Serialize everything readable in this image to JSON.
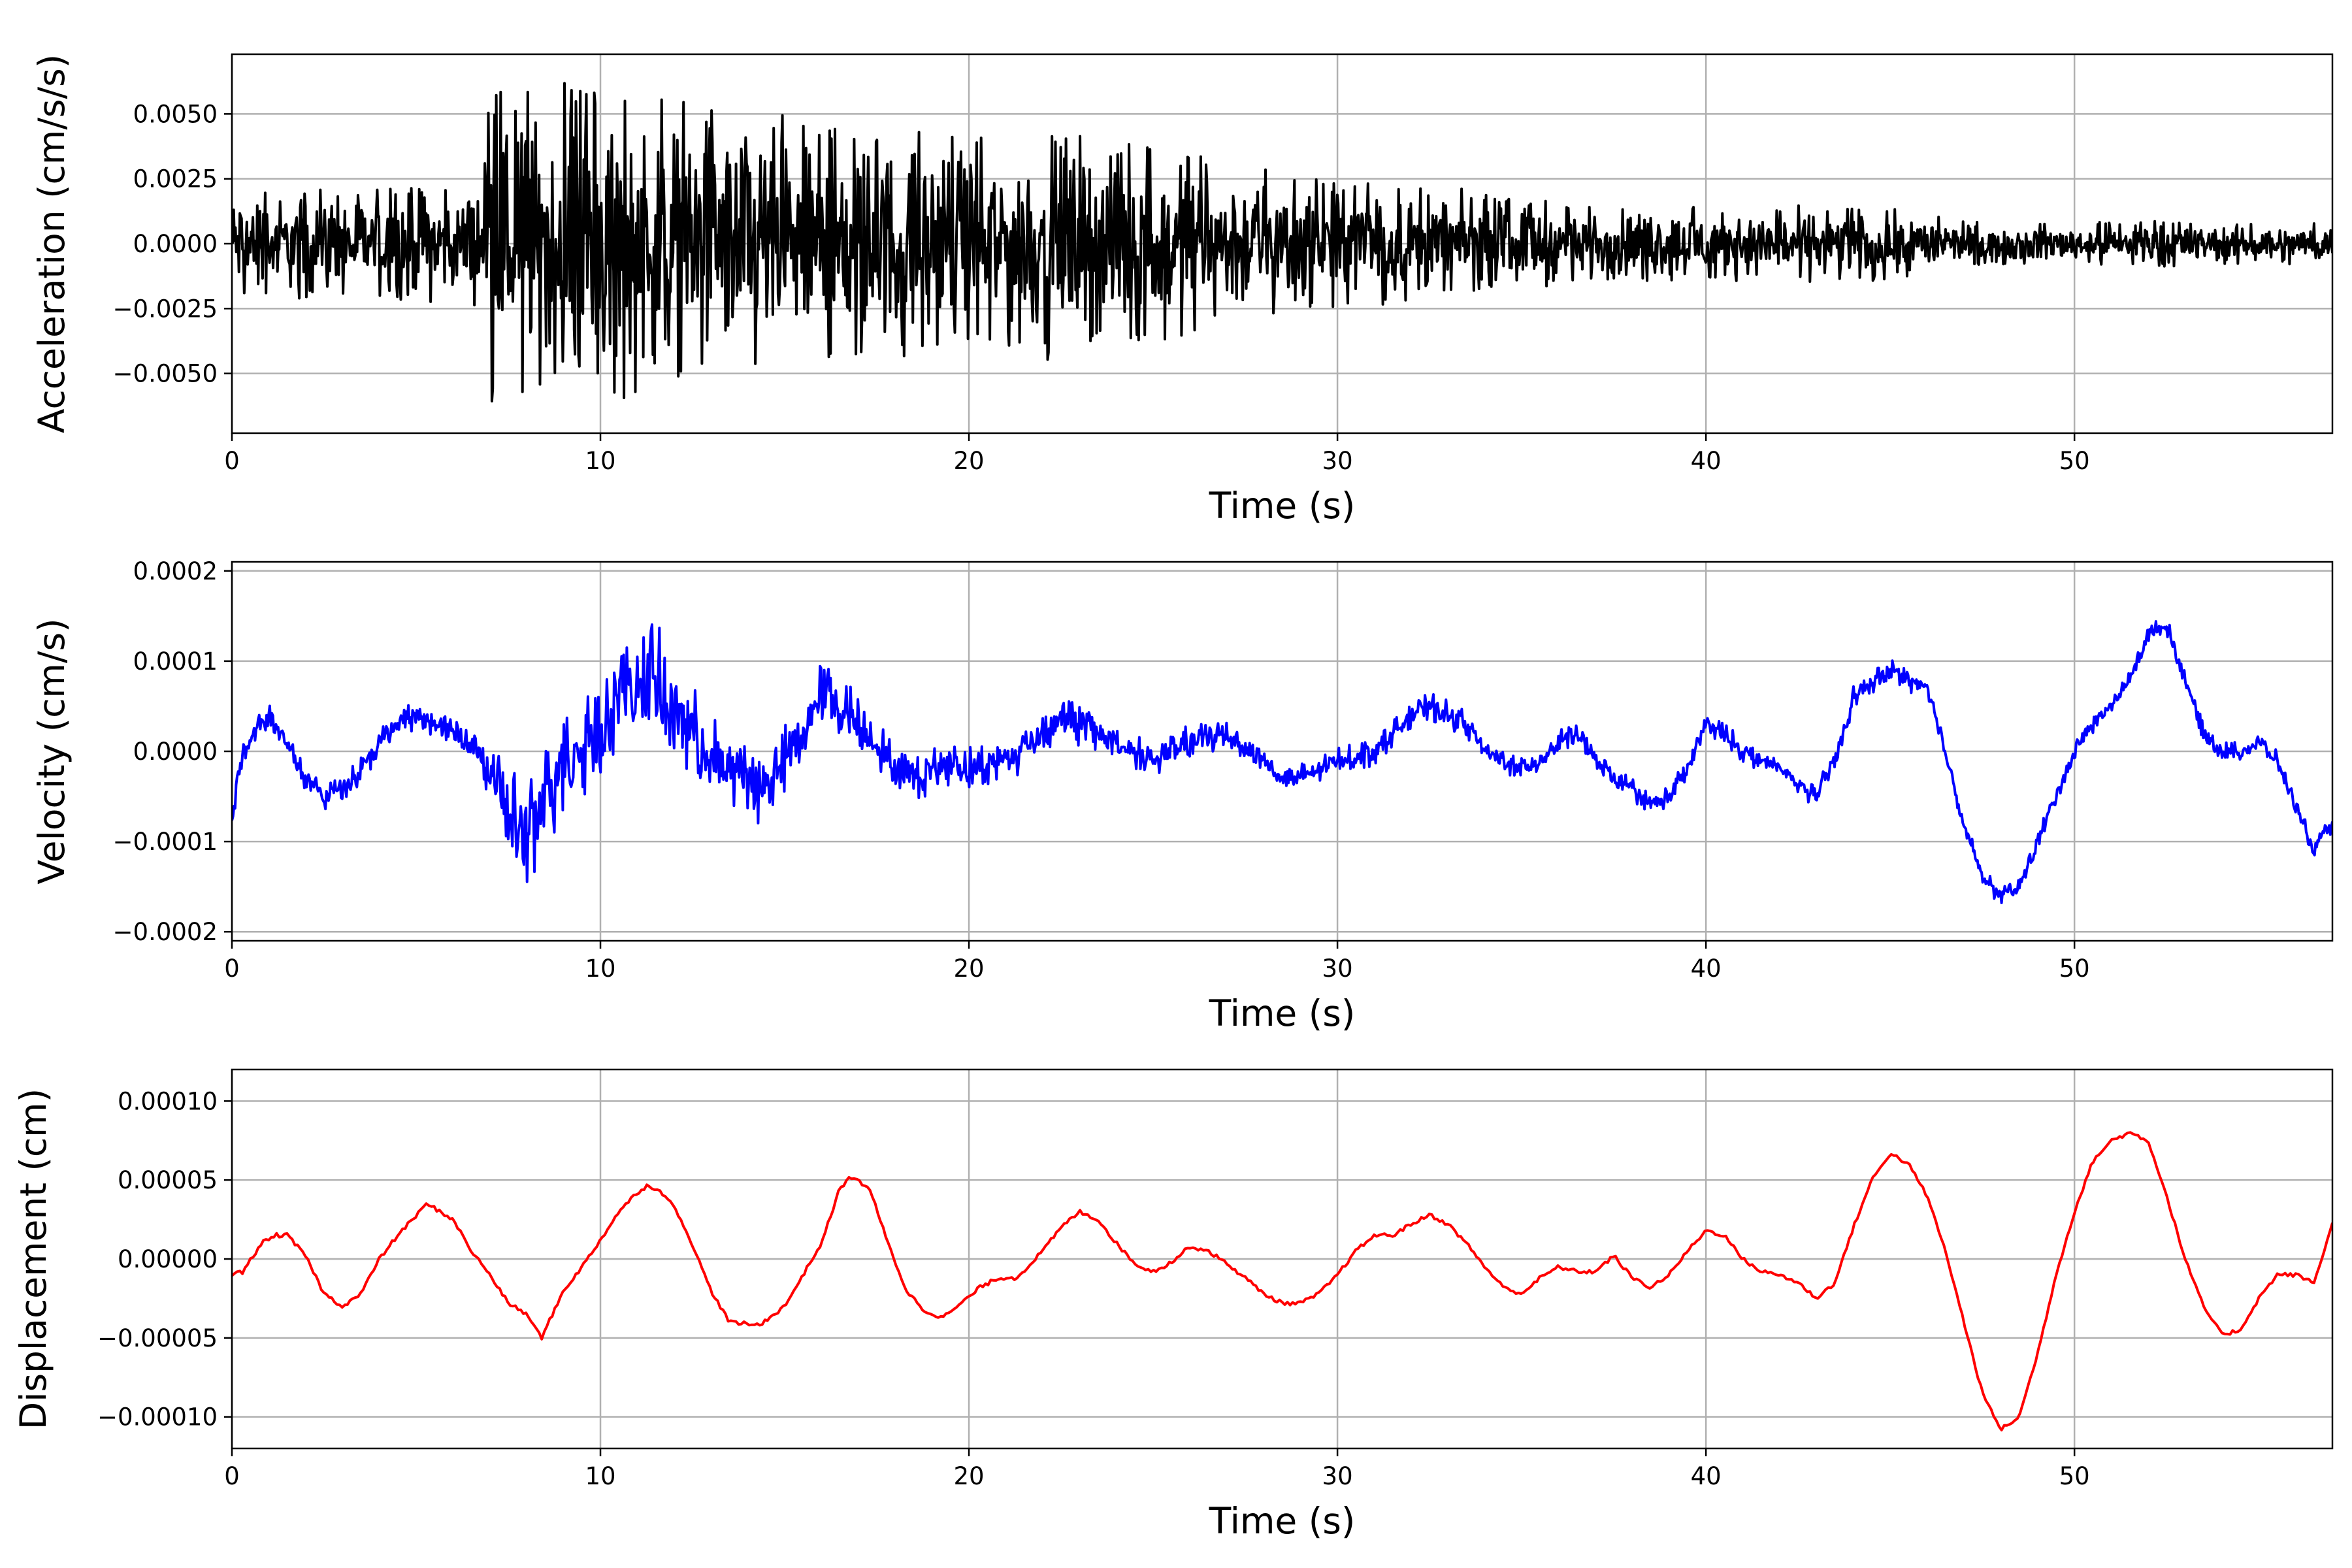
{
  "chart_data": [
    {
      "type": "line",
      "xlabel": "Time (s)",
      "ylabel": "Acceleration (cm/s/s)",
      "xlim": [
        0,
        57
      ],
      "ylim": [
        -0.0073,
        0.0073
      ],
      "xticks": [
        0,
        10,
        20,
        30,
        40,
        50
      ],
      "xtick_labels": [
        "0",
        "10",
        "20",
        "30",
        "40",
        "50"
      ],
      "yticks": [
        0.005,
        0.0025,
        0.0,
        -0.0025,
        -0.005
      ],
      "ytick_labels": [
        "0.0050",
        "0.0025",
        "0.0000",
        "−0.0025",
        "−0.0050"
      ],
      "grid": true,
      "series": [
        {
          "color": "#000000",
          "style": "noise",
          "x": [
            0,
            2,
            5,
            6.8,
            7,
            8,
            9,
            10,
            11,
            12,
            14,
            16,
            18,
            20,
            22,
            24,
            26,
            28,
            30,
            32,
            34,
            36,
            38,
            40,
            42,
            44,
            46,
            46.5,
            48,
            50,
            52,
            54,
            56,
            57
          ],
          "amplitude": [
            0.0022,
            0.0021,
            0.0022,
            0.0024,
            0.0058,
            0.006,
            0.0062,
            0.0058,
            0.0062,
            0.0055,
            0.0052,
            0.0048,
            0.0045,
            0.004,
            0.0045,
            0.004,
            0.0036,
            0.003,
            0.0026,
            0.0022,
            0.0019,
            0.0016,
            0.0015,
            0.0014,
            0.0013,
            0.0015,
            0.0013,
            0.0009,
            0.0008,
            0.0008,
            0.0009,
            0.0008,
            0.0008,
            0.0008
          ],
          "samples": 2400
        }
      ]
    },
    {
      "type": "line",
      "xlabel": "Time (s)",
      "ylabel": "Velocity (cm/s)",
      "xlim": [
        0,
        57
      ],
      "ylim": [
        -0.00021,
        0.00021
      ],
      "xticks": [
        0,
        10,
        20,
        30,
        40,
        50
      ],
      "xtick_labels": [
        "0",
        "10",
        "20",
        "30",
        "40",
        "50"
      ],
      "yticks": [
        0.0002,
        0.0001,
        0.0,
        -0.0001,
        -0.0002
      ],
      "ytick_labels": [
        "0.0002",
        "0.0001",
        "0.0000",
        "−0.0001",
        "−0.0002"
      ],
      "grid": true,
      "series": [
        {
          "color": "#0000ff",
          "x": [
            0,
            0.3,
            0.7,
            1.0,
            1.5,
            2.0,
            2.5,
            3.0,
            3.5,
            4.0,
            4.5,
            5.0,
            5.5,
            6.0,
            6.5,
            7.0,
            7.3,
            7.7,
            8.0,
            8.3,
            8.7,
            9.0,
            9.5,
            10.0,
            10.5,
            11.0,
            11.3,
            11.7,
            12.0,
            12.5,
            13.0,
            13.5,
            14.0,
            14.5,
            15.0,
            15.5,
            16.0,
            16.5,
            17.0,
            17.5,
            18.0,
            18.5,
            19.0,
            19.5,
            20.0,
            21.0,
            22.0,
            22.5,
            23.0,
            24.0,
            25.0,
            26.0,
            27.0,
            28.0,
            28.5,
            29.0,
            30.0,
            31.0,
            32.0,
            32.5,
            33.0,
            33.5,
            34.0,
            35.0,
            35.5,
            36.0,
            36.5,
            37.0,
            37.5,
            38.0,
            38.5,
            39.0,
            39.5,
            40.0,
            40.5,
            41.0,
            42.0,
            43.0,
            43.5,
            44.0,
            45.0,
            46.0,
            46.5,
            47.0,
            47.5,
            48.0,
            48.5,
            49.0,
            49.5,
            50.0,
            50.5,
            51.0,
            51.5,
            52.0,
            52.5,
            53.0,
            53.5,
            54.0,
            54.5,
            55.0,
            55.5,
            56.0,
            56.5,
            57.0
          ],
          "y": [
            -7e-05,
            0.0,
            3e-05,
            4e-05,
            1e-05,
            -3e-05,
            -5e-05,
            -4e-05,
            -2e-05,
            1e-05,
            3e-05,
            4e-05,
            3e-05,
            2e-05,
            1e-05,
            -2e-05,
            -6e-05,
            -8e-05,
            -0.0001,
            -8e-05,
            -3e-05,
            -1e-05,
            1e-05,
            3e-05,
            6e-05,
            7e-05,
            9e-05,
            6e-05,
            4e-05,
            2e-05,
            -1e-05,
            -2e-05,
            -3e-05,
            -4e-05,
            -1e-05,
            2e-05,
            7e-05,
            5e-05,
            3e-05,
            1e-05,
            -2e-05,
            -3e-05,
            -2e-05,
            -1e-05,
            -2e-05,
            -1e-05,
            2e-05,
            4e-05,
            3e-05,
            1e-05,
            -1e-05,
            1e-05,
            2e-05,
            -1e-05,
            -3e-05,
            -3e-05,
            -1e-05,
            0.0,
            4e-05,
            5e-05,
            4e-05,
            3e-05,
            0.0,
            -2e-05,
            -1e-05,
            1e-05,
            2e-05,
            -1e-05,
            -3e-05,
            -4e-05,
            -6e-05,
            -5e-05,
            -2e-05,
            3e-05,
            2e-05,
            0.0,
            -2e-05,
            -5e-05,
            -1e-05,
            6e-05,
            9e-05,
            7e-05,
            0.0,
            -8e-05,
            -0.00014,
            -0.00016,
            -0.00015,
            -0.0001,
            -5e-05,
            0.0,
            3e-05,
            5e-05,
            8e-05,
            0.00013,
            0.00014,
            8e-05,
            2e-05,
            0.0,
            0.0,
            1e-05,
            -1e-05,
            -6e-05,
            -0.00011,
            -8e-05
          ],
          "noise": [
            1.2e-05,
            1.2e-05,
            1.2e-05,
            1.2e-05,
            1.2e-05,
            1.2e-05,
            1.2e-05,
            1.2e-05,
            1.2e-05,
            1.2e-05,
            1.2e-05,
            1.2e-05,
            1.2e-05,
            1.2e-05,
            1.2e-05,
            4e-05,
            5e-05,
            5e-05,
            5e-05,
            5e-05,
            5e-05,
            5e-05,
            5e-05,
            5e-05,
            5e-05,
            5e-05,
            5e-05,
            5e-05,
            5e-05,
            4e-05,
            4e-05,
            4e-05,
            4e-05,
            3e-05,
            3e-05,
            3e-05,
            3e-05,
            3e-05,
            3e-05,
            2e-05,
            2e-05,
            2e-05,
            2e-05,
            2e-05,
            2e-05,
            2e-05,
            2e-05,
            2e-05,
            2e-05,
            1.5e-05,
            1.5e-05,
            1.5e-05,
            1.5e-05,
            1.2e-05,
            1.2e-05,
            1.2e-05,
            1.2e-05,
            1.2e-05,
            1.2e-05,
            1.2e-05,
            1.2e-05,
            1.2e-05,
            1e-05,
            1e-05,
            1e-05,
            1e-05,
            1e-05,
            1e-05,
            1e-05,
            1e-05,
            1e-05,
            1e-05,
            1e-05,
            1e-05,
            1e-05,
            1e-05,
            1e-05,
            1e-05,
            1e-05,
            1e-05,
            1e-05,
            1e-05,
            8e-06,
            8e-06,
            8e-06,
            8e-06,
            8e-06,
            8e-06,
            8e-06,
            8e-06,
            8e-06,
            8e-06,
            8e-06,
            8e-06,
            8e-06,
            8e-06,
            8e-06,
            8e-06,
            8e-06,
            8e-06,
            8e-06,
            8e-06,
            8e-06,
            8e-06
          ]
        }
      ]
    },
    {
      "type": "line",
      "xlabel": "Time (s)",
      "ylabel": "Displacement (cm)",
      "xlim": [
        0,
        57
      ],
      "ylim": [
        -0.00012,
        0.00012
      ],
      "xticks": [
        0,
        10,
        20,
        30,
        40,
        50
      ],
      "xtick_labels": [
        "0",
        "10",
        "20",
        "30",
        "40",
        "50"
      ],
      "yticks": [
        0.0001,
        5e-05,
        0.0,
        -5e-05,
        -0.0001
      ],
      "ytick_labels": [
        "0.00010",
        "0.00005",
        "0.00000",
        "−0.00005",
        "−0.00010"
      ],
      "grid": true,
      "series": [
        {
          "color": "#ff0000",
          "x": [
            0,
            0.3,
            0.8,
            1.2,
            1.5,
            2.0,
            2.5,
            3.0,
            3.5,
            4.0,
            4.5,
            5.3,
            6.0,
            6.5,
            7.0,
            7.5,
            8.0,
            8.4,
            9.0,
            9.5,
            10.0,
            10.5,
            11.0,
            11.3,
            11.8,
            12.3,
            13.0,
            13.5,
            14.3,
            15.0,
            15.5,
            16.0,
            16.5,
            16.8,
            17.3,
            17.8,
            18.3,
            18.8,
            19.3,
            19.8,
            20.3,
            20.8,
            21.3,
            22.0,
            22.5,
            23.0,
            23.5,
            24.0,
            24.5,
            25.0,
            25.5,
            26.0,
            26.5,
            27.0,
            27.5,
            28.0,
            28.5,
            29.0,
            29.5,
            30.0,
            30.5,
            31.0,
            31.5,
            32.0,
            32.5,
            33.0,
            33.5,
            34.0,
            34.5,
            35.0,
            35.5,
            36.0,
            36.5,
            37.0,
            37.5,
            38.0,
            38.5,
            39.0,
            39.5,
            40.0,
            40.5,
            41.0,
            41.5,
            42.0,
            42.5,
            43.0,
            43.5,
            44.0,
            44.5,
            45.0,
            45.5,
            46.0,
            46.5,
            47.0,
            47.5,
            48.0,
            48.5,
            49.0,
            49.5,
            50.0,
            50.5,
            51.0,
            51.5,
            52.0,
            52.5,
            53.0,
            53.5,
            54.0,
            54.5,
            55.0,
            55.5,
            56.0,
            56.5,
            57.0
          ],
          "y": [
            -1e-05,
            -8e-06,
            1e-05,
            1.5e-05,
            1.5e-05,
            2e-06,
            -2.2e-05,
            -3e-05,
            -2.2e-05,
            0.0,
            1.5e-05,
            3.5e-05,
            2.5e-05,
            5e-06,
            -1e-05,
            -2.8e-05,
            -3.5e-05,
            -5e-05,
            -2e-05,
            -5e-06,
            1.2e-05,
            3e-05,
            4.2e-05,
            4.7e-05,
            4e-05,
            2e-05,
            -2e-05,
            -4e-05,
            -4.2e-05,
            -3e-05,
            -1e-05,
            1e-05,
            4.5e-05,
            5.2e-05,
            4.5e-05,
            1e-05,
            -2e-05,
            -3.3e-05,
            -3.7e-05,
            -2.8e-05,
            -1.8e-05,
            -1.2e-05,
            -1.2e-05,
            5e-06,
            2e-05,
            3e-05,
            2.5e-05,
            1e-05,
            -3e-06,
            -8e-06,
            -2e-06,
            8e-06,
            5e-06,
            -3e-06,
            -1.2e-05,
            -2.2e-05,
            -2.8e-05,
            -2.8e-05,
            -2.2e-05,
            -1e-05,
            5e-06,
            1.5e-05,
            1.5e-05,
            2.2e-05,
            2.8e-05,
            2.2e-05,
            1e-05,
            -5e-06,
            -1.8e-05,
            -2.2e-05,
            -1.2e-05,
            -5e-06,
            -8e-06,
            -8e-06,
            2e-06,
            -1.2e-05,
            -1.8e-05,
            -1e-05,
            5e-06,
            1.8e-05,
            1.5e-05,
            0.0,
            -8e-06,
            -1e-05,
            -1.5e-05,
            -2.5e-05,
            -1.5e-05,
            2e-05,
            5e-05,
            6.7e-05,
            6e-05,
            4e-05,
            5e-06,
            -4e-05,
            -8.5e-05,
            -0.000108,
            -0.0001,
            -6e-05,
            -1e-05,
            3e-05,
            6.2e-05,
            7.5e-05,
            8e-05,
            7.5e-05,
            4e-05,
            0.0,
            -3e-05,
            -4.8e-05,
            -4.5e-05,
            -2.5e-05,
            -1e-05,
            -1e-05,
            -1.5e-05,
            2.2e-05
          ],
          "noise": []
        }
      ]
    }
  ]
}
